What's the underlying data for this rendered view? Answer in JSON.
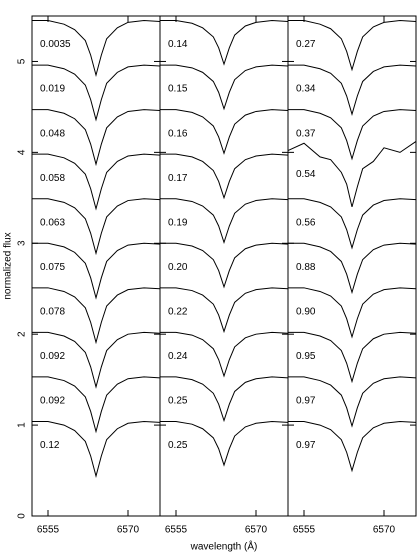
{
  "chart_data": [
    {
      "type": "line",
      "ylabel": "normalized flux",
      "x": [
        6552,
        6555,
        6558,
        6560,
        6562,
        6563,
        6564,
        6565,
        6566,
        6568,
        6570,
        6573,
        6576
      ],
      "xlim": [
        6552,
        6576
      ],
      "xticks": [
        6555,
        6570
      ],
      "ylim": [
        0,
        5.5
      ],
      "yticks": [
        0,
        1,
        2,
        3,
        4,
        5
      ],
      "series": [
        {
          "name": "0.0035",
          "color": "#000000",
          "values": [
            5.45,
            5.45,
            5.41,
            5.35,
            5.23,
            5.07,
            4.85,
            5.07,
            5.25,
            5.37,
            5.43,
            5.45,
            5.44
          ]
        },
        {
          "name": "0.019",
          "color": "#000000",
          "values": [
            4.96,
            4.96,
            4.92,
            4.86,
            4.74,
            4.58,
            4.36,
            4.58,
            4.76,
            4.88,
            4.94,
            4.96,
            4.95
          ]
        },
        {
          "name": "0.048",
          "color": "#000000",
          "values": [
            4.47,
            4.47,
            4.43,
            4.37,
            4.25,
            4.09,
            3.87,
            4.09,
            4.27,
            4.39,
            4.45,
            4.47,
            4.46
          ]
        },
        {
          "name": "0.058",
          "color": "#000000",
          "values": [
            3.98,
            3.98,
            3.94,
            3.88,
            3.76,
            3.6,
            3.38,
            3.6,
            3.78,
            3.9,
            3.96,
            3.98,
            3.97
          ]
        },
        {
          "name": "0.063",
          "color": "#000000",
          "values": [
            3.49,
            3.49,
            3.45,
            3.39,
            3.27,
            3.11,
            2.89,
            3.11,
            3.29,
            3.41,
            3.47,
            3.49,
            3.48
          ]
        },
        {
          "name": "0.075",
          "color": "#000000",
          "values": [
            3,
            3,
            2.96,
            2.9,
            2.78,
            2.62,
            2.4,
            2.62,
            2.8,
            2.92,
            2.98,
            3,
            2.99
          ]
        },
        {
          "name": "0.078",
          "color": "#000000",
          "values": [
            2.51,
            2.51,
            2.47,
            2.41,
            2.29,
            2.13,
            1.91,
            2.13,
            2.31,
            2.43,
            2.49,
            2.51,
            2.5
          ]
        },
        {
          "name": "0.092",
          "color": "#000000",
          "values": [
            2.02,
            2.02,
            1.98,
            1.92,
            1.8,
            1.64,
            1.42,
            1.64,
            1.82,
            1.94,
            2,
            2.02,
            2.01
          ]
        },
        {
          "name": "0.092",
          "color": "#000000",
          "values": [
            1.53,
            1.53,
            1.49,
            1.43,
            1.31,
            1.15,
            0.93,
            1.15,
            1.33,
            1.45,
            1.51,
            1.53,
            1.52
          ]
        },
        {
          "name": "0.12",
          "color": "#000000",
          "values": [
            1.04,
            1.04,
            1,
            0.94,
            0.82,
            0.66,
            0.44,
            0.66,
            0.84,
            0.96,
            1.02,
            1.04,
            1.03
          ]
        }
      ]
    },
    {
      "type": "line",
      "xlabel": "wavelength (Å)",
      "x": [
        6552,
        6555,
        6558,
        6560,
        6562,
        6563,
        6564,
        6565,
        6566,
        6568,
        6570,
        6573,
        6576
      ],
      "xlim": [
        6552,
        6576
      ],
      "xticks": [
        6555,
        6570
      ],
      "ylim": [
        0,
        5.5
      ],
      "yticks": [
        0,
        1,
        2,
        3,
        4,
        5
      ],
      "series": [
        {
          "name": "0.14",
          "color": "#000000",
          "values": [
            5.45,
            5.45,
            5.42,
            5.37,
            5.27,
            5.15,
            4.97,
            5.15,
            5.29,
            5.39,
            5.43,
            5.45,
            5.44
          ]
        },
        {
          "name": "0.15",
          "color": "#000000",
          "values": [
            4.96,
            4.96,
            4.93,
            4.88,
            4.78,
            4.66,
            4.48,
            4.66,
            4.8,
            4.9,
            4.94,
            4.96,
            4.95
          ]
        },
        {
          "name": "0.16",
          "color": "#000000",
          "values": [
            4.47,
            4.47,
            4.44,
            4.39,
            4.29,
            4.17,
            3.99,
            4.17,
            4.31,
            4.41,
            4.45,
            4.47,
            4.46
          ]
        },
        {
          "name": "0.17",
          "color": "#000000",
          "values": [
            3.98,
            3.98,
            3.95,
            3.9,
            3.8,
            3.68,
            3.5,
            3.68,
            3.82,
            3.92,
            3.96,
            3.98,
            3.97
          ]
        },
        {
          "name": "0.19",
          "color": "#000000",
          "values": [
            3.49,
            3.49,
            3.46,
            3.41,
            3.31,
            3.19,
            3.01,
            3.19,
            3.33,
            3.43,
            3.47,
            3.49,
            3.48
          ]
        },
        {
          "name": "0.20",
          "color": "#000000",
          "values": [
            3,
            3,
            2.97,
            2.92,
            2.82,
            2.7,
            2.52,
            2.7,
            2.84,
            2.94,
            2.98,
            3,
            2.99
          ]
        },
        {
          "name": "0.22",
          "color": "#000000",
          "values": [
            2.51,
            2.51,
            2.48,
            2.43,
            2.33,
            2.21,
            2.03,
            2.21,
            2.35,
            2.45,
            2.49,
            2.51,
            2.5
          ]
        },
        {
          "name": "0.24",
          "color": "#000000",
          "values": [
            2.02,
            2.02,
            1.99,
            1.94,
            1.84,
            1.72,
            1.54,
            1.72,
            1.86,
            1.96,
            2,
            2.02,
            2.01
          ]
        },
        {
          "name": "0.25",
          "color": "#000000",
          "values": [
            1.53,
            1.53,
            1.5,
            1.45,
            1.35,
            1.23,
            1.05,
            1.23,
            1.37,
            1.47,
            1.51,
            1.53,
            1.52
          ]
        },
        {
          "name": "0.25",
          "color": "#000000",
          "values": [
            1.04,
            1.04,
            1.01,
            0.96,
            0.86,
            0.74,
            0.56,
            0.74,
            0.88,
            0.98,
            1.02,
            1.04,
            1.03
          ]
        }
      ]
    },
    {
      "type": "line",
      "x": [
        6552,
        6555,
        6558,
        6560,
        6562,
        6563,
        6564,
        6565,
        6566,
        6568,
        6570,
        6573,
        6576
      ],
      "xlim": [
        6552,
        6576
      ],
      "xticks": [
        6555,
        6570
      ],
      "ylim": [
        0,
        5.5
      ],
      "yticks": [
        0,
        1,
        2,
        3,
        4,
        5
      ],
      "series": [
        {
          "name": "0.27",
          "color": "#000000",
          "values": [
            5.45,
            5.45,
            5.41,
            5.36,
            5.25,
            5.11,
            4.91,
            5.11,
            5.27,
            5.38,
            5.43,
            5.45,
            5.44
          ]
        },
        {
          "name": "0.34",
          "color": "#000000",
          "values": [
            4.96,
            4.96,
            4.92,
            4.87,
            4.76,
            4.62,
            4.42,
            4.62,
            4.78,
            4.89,
            4.94,
            4.96,
            4.95
          ]
        },
        {
          "name": "0.37",
          "color": "#000000",
          "values": [
            4.47,
            4.47,
            4.43,
            4.38,
            4.27,
            4.13,
            3.93,
            4.13,
            4.29,
            4.4,
            4.45,
            4.47,
            4.46
          ]
        },
        {
          "name": "0.54",
          "color": "#000000",
          "values": [
            4.02,
            4.1,
            3.95,
            3.92,
            3.78,
            3.65,
            3.4,
            3.62,
            3.82,
            3.9,
            4.05,
            4.0,
            4.12
          ]
        },
        {
          "name": "0.56",
          "color": "#000000",
          "values": [
            3.49,
            3.49,
            3.45,
            3.4,
            3.29,
            3.15,
            2.95,
            3.15,
            3.31,
            3.42,
            3.47,
            3.49,
            3.48
          ]
        },
        {
          "name": "0.88",
          "color": "#000000",
          "values": [
            3,
            3,
            2.96,
            2.91,
            2.8,
            2.66,
            2.46,
            2.66,
            2.82,
            2.93,
            2.98,
            3,
            2.99
          ]
        },
        {
          "name": "0.90",
          "color": "#000000",
          "values": [
            2.51,
            2.51,
            2.47,
            2.42,
            2.31,
            2.17,
            1.97,
            2.17,
            2.33,
            2.44,
            2.49,
            2.51,
            2.5
          ]
        },
        {
          "name": "0.95",
          "color": "#000000",
          "values": [
            2.02,
            2.02,
            1.98,
            1.93,
            1.82,
            1.68,
            1.48,
            1.68,
            1.84,
            1.95,
            2,
            2.02,
            2.01
          ]
        },
        {
          "name": "0.97",
          "color": "#000000",
          "values": [
            1.53,
            1.53,
            1.49,
            1.44,
            1.33,
            1.19,
            0.99,
            1.19,
            1.35,
            1.46,
            1.51,
            1.53,
            1.52
          ]
        },
        {
          "name": "0.97",
          "color": "#000000",
          "values": [
            1.04,
            1.04,
            1,
            0.95,
            0.84,
            0.7,
            0.5,
            0.7,
            0.86,
            0.97,
            1.02,
            1.04,
            1.03
          ]
        }
      ]
    }
  ]
}
